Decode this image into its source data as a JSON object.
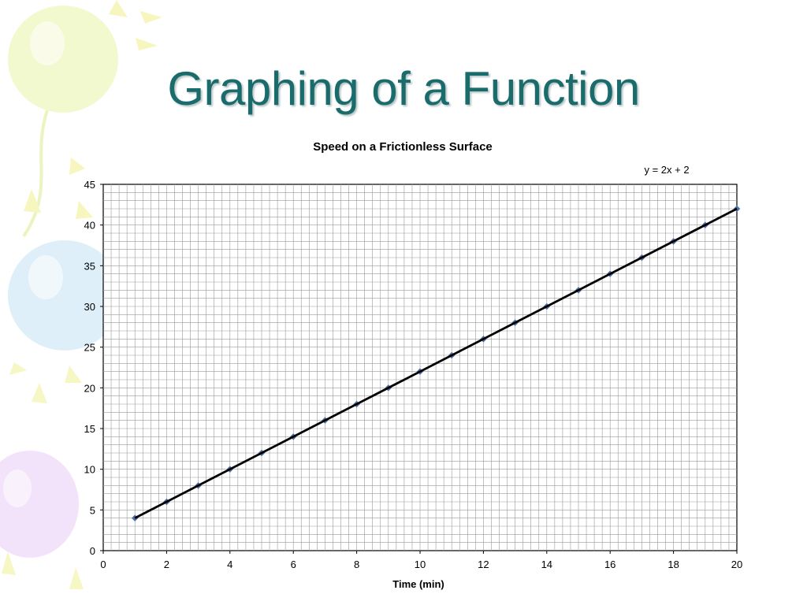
{
  "slide": {
    "title": "Graphing of a Function"
  },
  "chart_data": {
    "type": "scatter",
    "title": "Speed on a Frictionless Surface",
    "xlabel": "Time (min)",
    "ylabel": "",
    "xlim": [
      0,
      20
    ],
    "ylim": [
      0,
      45
    ],
    "x_ticks": [
      0,
      2,
      4,
      6,
      8,
      10,
      12,
      14,
      16,
      18,
      20
    ],
    "y_ticks": [
      0,
      5,
      10,
      15,
      20,
      25,
      30,
      35,
      40,
      45
    ],
    "grid": true,
    "trendline": {
      "equation": "y = 2x + 2",
      "slope": 2,
      "intercept": 2,
      "x_range": [
        1,
        20
      ],
      "color": "#000000"
    },
    "series": [
      {
        "marker_color": "#4f6fa8",
        "x": [
          1,
          2,
          3,
          4,
          5,
          6,
          7,
          8,
          9,
          10,
          11,
          12,
          13,
          14,
          15,
          16,
          17,
          18,
          19,
          20
        ],
        "y": [
          4,
          6,
          8,
          10,
          12,
          14,
          16,
          18,
          20,
          22,
          24,
          26,
          28,
          30,
          32,
          34,
          36,
          38,
          40,
          42
        ]
      }
    ]
  }
}
